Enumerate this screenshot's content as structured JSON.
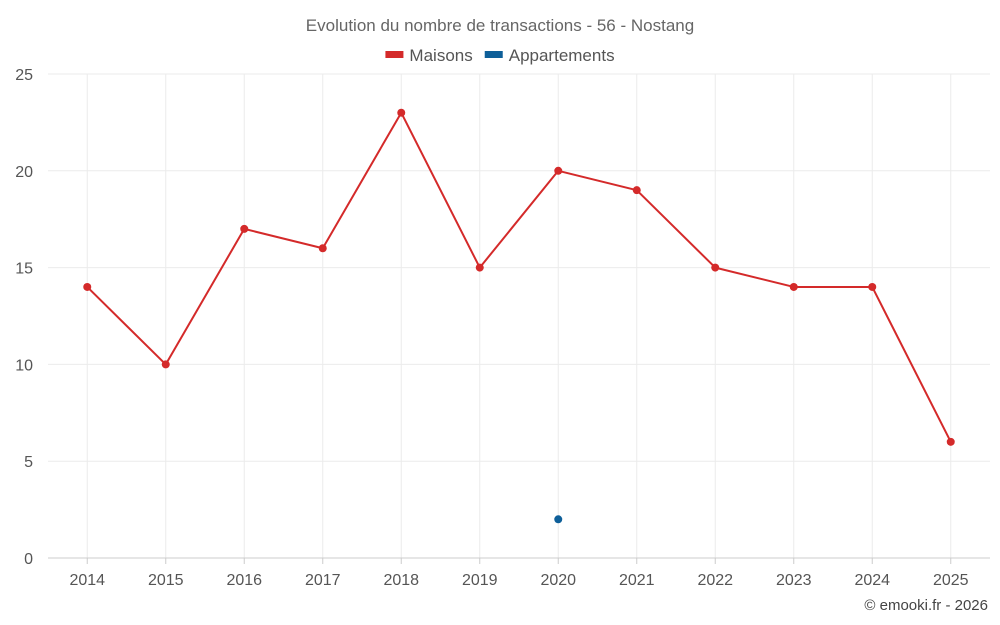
{
  "chart_data": {
    "type": "line",
    "title": "Evolution du nombre de transactions - 56 - Nostang",
    "categories": [
      "2014",
      "2015",
      "2016",
      "2017",
      "2018",
      "2019",
      "2020",
      "2021",
      "2022",
      "2023",
      "2024",
      "2025"
    ],
    "series": [
      {
        "name": "Maisons",
        "color": "#d42a2a",
        "values": [
          14,
          10,
          17,
          16,
          23,
          15,
          20,
          19,
          15,
          14,
          14,
          6
        ]
      },
      {
        "name": "Appartements",
        "color": "#0e5f99",
        "values": [
          null,
          null,
          null,
          null,
          null,
          null,
          2,
          null,
          null,
          null,
          null,
          null
        ]
      }
    ],
    "yticks": [
      0,
      5,
      10,
      15,
      20,
      25
    ],
    "ylim": [
      0,
      25
    ],
    "xlabel": "",
    "ylabel": "",
    "grid": true,
    "legend_position": "top-center"
  },
  "credit": "© emooki.fr - 2026"
}
